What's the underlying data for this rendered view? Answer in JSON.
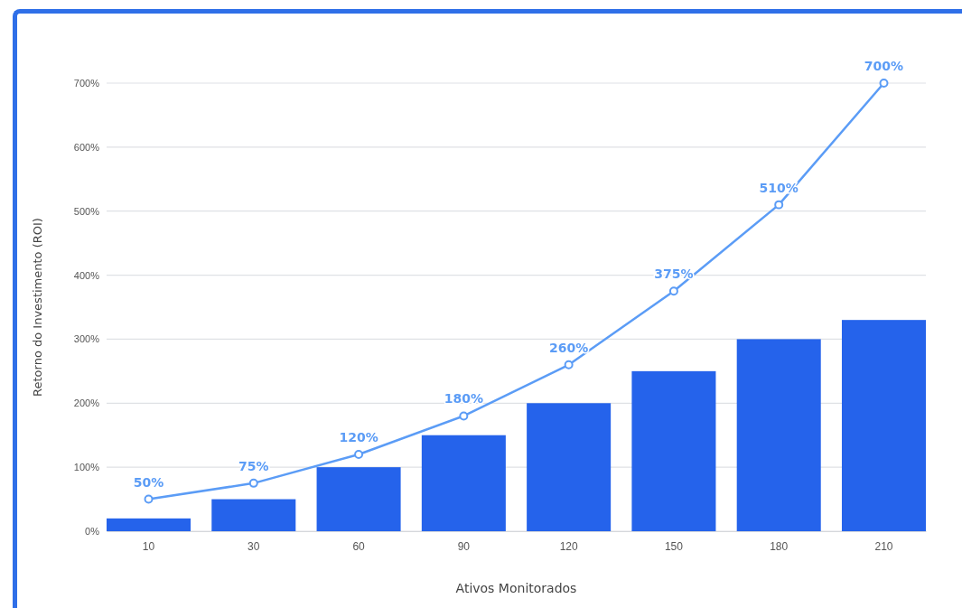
{
  "chart_data": {
    "type": "bar",
    "xlabel": "Ativos Monitorados",
    "ylabel": "Retorno do Investimento (ROI)",
    "categories": [
      "10",
      "30",
      "60",
      "90",
      "120",
      "150",
      "180",
      "210"
    ],
    "series": [
      {
        "color": "#2563eb",
        "values": [
          20,
          50,
          100,
          150,
          200,
          250,
          300,
          330
        ]
      },
      {
        "type": "line",
        "color": "#5b9cf6",
        "values": [
          50,
          75,
          120,
          180,
          260,
          375,
          510,
          700
        ],
        "value_labels": [
          "50%",
          "75%",
          "120%",
          "180%",
          "260%",
          "375%",
          "510%",
          "700%"
        ]
      }
    ],
    "ylim": [
      0,
      700
    ],
    "yticks": [
      {
        "value": 0,
        "label": "0%"
      },
      {
        "value": 100,
        "label": "100%"
      },
      {
        "value": 200,
        "label": "200%"
      },
      {
        "value": 300,
        "label": "300%"
      },
      {
        "value": 400,
        "label": "400%"
      },
      {
        "value": 500,
        "label": "500%"
      },
      {
        "value": 600,
        "label": "600%"
      },
      {
        "value": 700,
        "label": "700%"
      }
    ],
    "grid": "y",
    "marker": "circle",
    "line_style": "solid"
  }
}
